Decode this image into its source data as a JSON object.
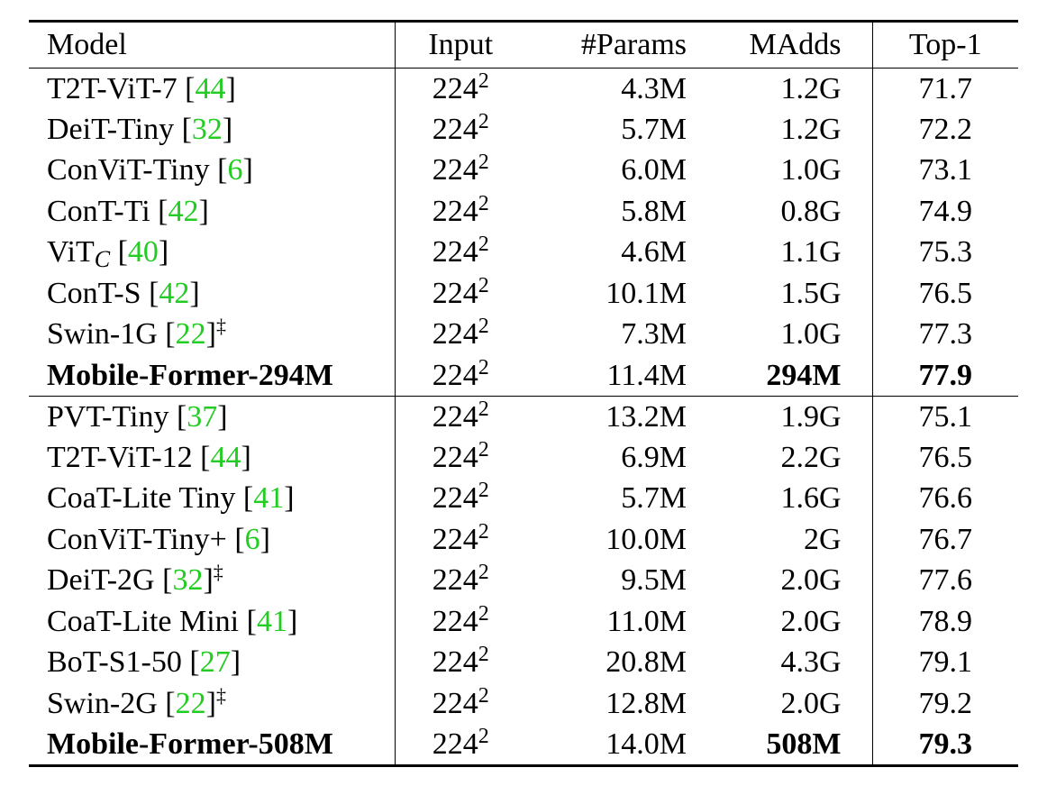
{
  "header": {
    "model": "Model",
    "input": "Input",
    "params": "#Params",
    "madds": "MAdds",
    "top1": "Top-1"
  },
  "rows": [
    {
      "name": "T2T-ViT-7 ",
      "sub": "",
      "cite_open": "[",
      "cite": "44",
      "cite_close": "]",
      "mark": "",
      "input_base": "224",
      "input_exp": "2",
      "params": "4.3M",
      "madds": "1.2G",
      "top1": "71.7",
      "bold": false,
      "group_end": false
    },
    {
      "name": "DeiT-Tiny ",
      "sub": "",
      "cite_open": "[",
      "cite": "32",
      "cite_close": "]",
      "mark": "",
      "input_base": "224",
      "input_exp": "2",
      "params": "5.7M",
      "madds": "1.2G",
      "top1": "72.2",
      "bold": false,
      "group_end": false
    },
    {
      "name": "ConViT-Tiny ",
      "sub": "",
      "cite_open": "[",
      "cite": "6",
      "cite_close": "]",
      "mark": "",
      "input_base": "224",
      "input_exp": "2",
      "params": "6.0M",
      "madds": "1.0G",
      "top1": "73.1",
      "bold": false,
      "group_end": false
    },
    {
      "name": "ConT-Ti ",
      "sub": "",
      "cite_open": "[",
      "cite": "42",
      "cite_close": "]",
      "mark": "",
      "input_base": "224",
      "input_exp": "2",
      "params": "5.8M",
      "madds": "0.8G",
      "top1": "74.9",
      "bold": false,
      "group_end": false
    },
    {
      "name": "ViT",
      "sub": "C",
      "cite_open": " [",
      "cite": "40",
      "cite_close": "]",
      "mark": "",
      "input_base": "224",
      "input_exp": "2",
      "params": "4.6M",
      "madds": "1.1G",
      "top1": "75.3",
      "bold": false,
      "group_end": false
    },
    {
      "name": "ConT-S ",
      "sub": "",
      "cite_open": "[",
      "cite": "42",
      "cite_close": "]",
      "mark": "",
      "input_base": "224",
      "input_exp": "2",
      "params": "10.1M",
      "madds": "1.5G",
      "top1": "76.5",
      "bold": false,
      "group_end": false
    },
    {
      "name": "Swin-1G ",
      "sub": "",
      "cite_open": "[",
      "cite": "22",
      "cite_close": "]",
      "mark": "‡",
      "input_base": "224",
      "input_exp": "2",
      "params": "7.3M",
      "madds": "1.0G",
      "top1": "77.3",
      "bold": false,
      "group_end": false
    },
    {
      "name": "Mobile-Former-294M",
      "sub": "",
      "cite_open": "",
      "cite": "",
      "cite_close": "",
      "mark": "",
      "input_base": "224",
      "input_exp": "2",
      "params": "11.4M",
      "madds": "294M",
      "top1": "77.9",
      "bold": true,
      "group_end": true
    },
    {
      "name": "PVT-Tiny ",
      "sub": "",
      "cite_open": "[",
      "cite": "37",
      "cite_close": "]",
      "mark": "",
      "input_base": "224",
      "input_exp": "2",
      "params": "13.2M",
      "madds": "1.9G",
      "top1": "75.1",
      "bold": false,
      "group_end": false
    },
    {
      "name": "T2T-ViT-12 ",
      "sub": "",
      "cite_open": "[",
      "cite": "44",
      "cite_close": "]",
      "mark": "",
      "input_base": "224",
      "input_exp": "2",
      "params": "6.9M",
      "madds": "2.2G",
      "top1": "76.5",
      "bold": false,
      "group_end": false
    },
    {
      "name": "CoaT-Lite Tiny ",
      "sub": "",
      "cite_open": "[",
      "cite": "41",
      "cite_close": "]",
      "mark": "",
      "input_base": "224",
      "input_exp": "2",
      "params": "5.7M",
      "madds": "1.6G",
      "top1": "76.6",
      "bold": false,
      "group_end": false
    },
    {
      "name": "ConViT-Tiny+ ",
      "sub": "",
      "cite_open": "[",
      "cite": "6",
      "cite_close": "]",
      "mark": "",
      "input_base": "224",
      "input_exp": "2",
      "params": "10.0M",
      "madds": "2G",
      "top1": "76.7",
      "bold": false,
      "group_end": false
    },
    {
      "name": "DeiT-2G ",
      "sub": "",
      "cite_open": "[",
      "cite": "32",
      "cite_close": "]",
      "mark": "‡",
      "input_base": "224",
      "input_exp": "2",
      "params": "9.5M",
      "madds": "2.0G",
      "top1": "77.6",
      "bold": false,
      "group_end": false
    },
    {
      "name": "CoaT-Lite Mini ",
      "sub": "",
      "cite_open": "[",
      "cite": "41",
      "cite_close": "]",
      "mark": "",
      "input_base": "224",
      "input_exp": "2",
      "params": "11.0M",
      "madds": "2.0G",
      "top1": "78.9",
      "bold": false,
      "group_end": false
    },
    {
      "name": "BoT-S1-50 ",
      "sub": "",
      "cite_open": "[",
      "cite": "27",
      "cite_close": "]",
      "mark": "",
      "input_base": "224",
      "input_exp": "2",
      "params": "20.8M",
      "madds": "4.3G",
      "top1": "79.1",
      "bold": false,
      "group_end": false
    },
    {
      "name": "Swin-2G ",
      "sub": "",
      "cite_open": "[",
      "cite": "22",
      "cite_close": "]",
      "mark": "‡",
      "input_base": "224",
      "input_exp": "2",
      "params": "12.8M",
      "madds": "2.0G",
      "top1": "79.2",
      "bold": false,
      "group_end": false
    },
    {
      "name": "Mobile-Former-508M",
      "sub": "",
      "cite_open": "",
      "cite": "",
      "cite_close": "",
      "mark": "",
      "input_base": "224",
      "input_exp": "2",
      "params": "14.0M",
      "madds": "508M",
      "top1": "79.3",
      "bold": true,
      "group_end": false
    }
  ],
  "colors": {
    "citation": "#22cc22",
    "text": "#000000",
    "rule": "#000000"
  }
}
